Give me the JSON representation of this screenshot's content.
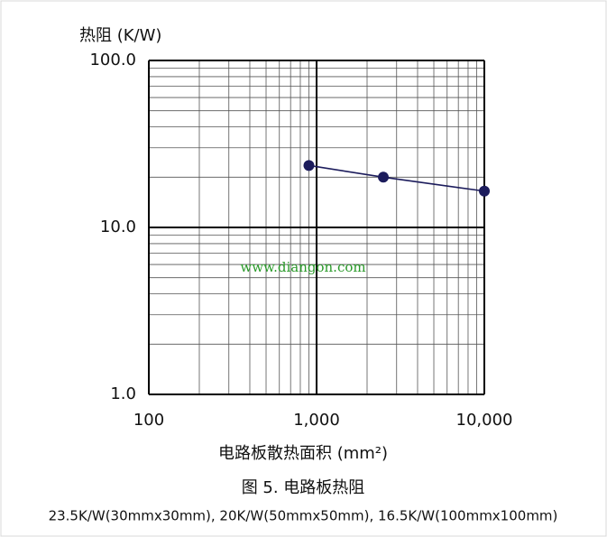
{
  "chart_data": {
    "type": "line",
    "y_label": "热阻 (K/W)",
    "x_label": "电路板散热面积 (mm²)",
    "caption": "图 5. 电路板热阻",
    "note": "23.5K/W(30mmx30mm), 20K/W(50mmx50mm), 16.5K/W(100mmx100mm)",
    "watermark": "www.diangon.com",
    "x": [
      900,
      2500,
      10000
    ],
    "series": [
      {
        "color": "#1c1c5c",
        "values": [
          23.5,
          20,
          16.5
        ]
      }
    ],
    "xlim": [
      100,
      10000
    ],
    "ylim": [
      1,
      100
    ],
    "xticks": [
      100,
      {
        "value": 1000,
        "label": "1,000"
      },
      {
        "value": 10000,
        "label": "10,000"
      }
    ],
    "yticks": [
      {
        "value": 1,
        "label": "1.0"
      },
      {
        "value": 10,
        "label": "10.0"
      },
      {
        "value": 100,
        "label": "100.0"
      }
    ],
    "xminorticks": [
      200,
      300,
      400,
      500,
      600,
      700,
      800,
      900,
      2000,
      3000,
      4000,
      5000,
      6000,
      7000,
      8000,
      9000
    ],
    "yminorticks": [
      2,
      3,
      4,
      5,
      6,
      7,
      8,
      9,
      20,
      30,
      40,
      50,
      60,
      70,
      80,
      90
    ],
    "xscale": "log",
    "yscale": "log",
    "grid": true
  }
}
